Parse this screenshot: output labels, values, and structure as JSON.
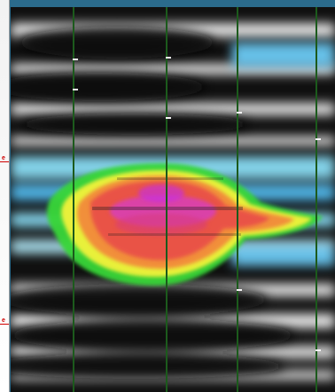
{
  "left_markers": [
    {
      "label": "e",
      "color": "#d00000"
    },
    {
      "label": "e",
      "color": "#d00000"
    }
  ],
  "palette": {
    "background": "#0a0a0a",
    "cyan": "#8fe6ff",
    "white": "#ffffff",
    "green": "#35d235",
    "yellow": "#f2f23a",
    "orange": "#f28a3a",
    "red": "#e84a4a",
    "magenta": "#d63cc8",
    "gridline": "#1c5a1c"
  },
  "icons": [
    "vertical-guide-line"
  ]
}
